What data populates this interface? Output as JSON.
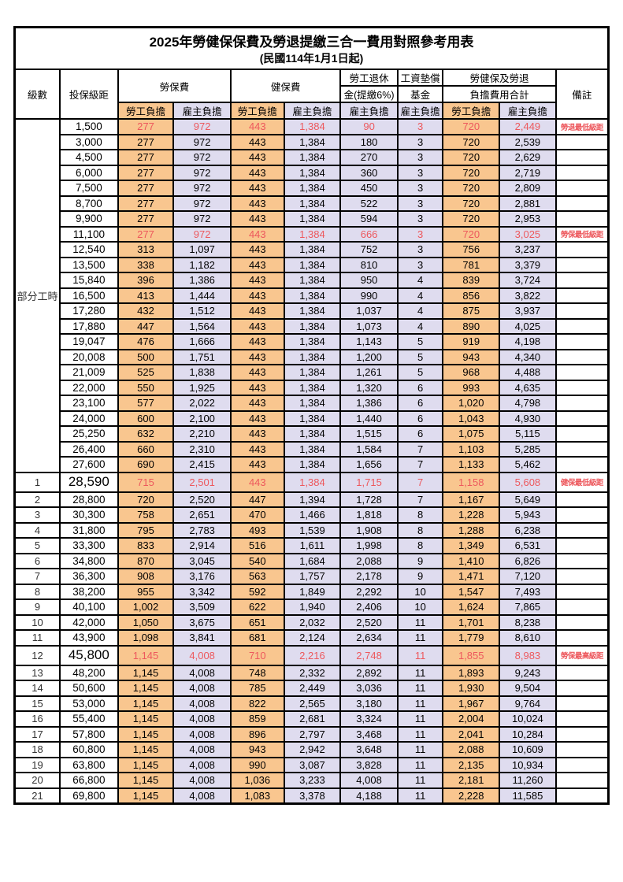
{
  "title": "2025年勞健保保費及勞退提繳三合一費用對照參考用表",
  "subtitle": "(民國114年1月1日起)",
  "header": {
    "level_label": "級數",
    "bracket_label": "投保級距",
    "labor_insurance_label": "勞保費",
    "health_insurance_label": "健保費",
    "pension_label_line1": "勞工退休",
    "pension_label_line2": "金(提繳6%)",
    "wage_fund_label_line1": "工資墊償",
    "wage_fund_label_line2": "基金",
    "grand_total_label_line1": "勞健保及勞退",
    "grand_total_label_line2": "負擔費用合計",
    "worker_label": "勞工負擔",
    "employer_label": "雇主負擔",
    "remark_label": "備註"
  },
  "part_time_label": "部分工時",
  "part_time_rowspan": 23,
  "colors": {
    "worker_bg": "#F9C68F",
    "employer_bg": "#DFDCEF",
    "highlight_red": "#ED585D"
  },
  "rows": [
    {
      "level": "",
      "bracket": "1,500",
      "cells": [
        "277",
        "972",
        "443",
        "1,384",
        "90",
        "3",
        "720",
        "2,449"
      ],
      "remark": "勞退最低級距",
      "red": true,
      "big": false
    },
    {
      "level": "",
      "bracket": "3,000",
      "cells": [
        "277",
        "972",
        "443",
        "1,384",
        "180",
        "3",
        "720",
        "2,539"
      ],
      "remark": "",
      "red": false,
      "big": false
    },
    {
      "level": "",
      "bracket": "4,500",
      "cells": [
        "277",
        "972",
        "443",
        "1,384",
        "270",
        "3",
        "720",
        "2,629"
      ],
      "remark": "",
      "red": false,
      "big": false
    },
    {
      "level": "",
      "bracket": "6,000",
      "cells": [
        "277",
        "972",
        "443",
        "1,384",
        "360",
        "3",
        "720",
        "2,719"
      ],
      "remark": "",
      "red": false,
      "big": false
    },
    {
      "level": "",
      "bracket": "7,500",
      "cells": [
        "277",
        "972",
        "443",
        "1,384",
        "450",
        "3",
        "720",
        "2,809"
      ],
      "remark": "",
      "red": false,
      "big": false
    },
    {
      "level": "",
      "bracket": "8,700",
      "cells": [
        "277",
        "972",
        "443",
        "1,384",
        "522",
        "3",
        "720",
        "2,881"
      ],
      "remark": "",
      "red": false,
      "big": false
    },
    {
      "level": "",
      "bracket": "9,900",
      "cells": [
        "277",
        "972",
        "443",
        "1,384",
        "594",
        "3",
        "720",
        "2,953"
      ],
      "remark": "",
      "red": false,
      "big": false
    },
    {
      "level": "",
      "bracket": "11,100",
      "cells": [
        "277",
        "972",
        "443",
        "1,384",
        "666",
        "3",
        "720",
        "3,025"
      ],
      "remark": "勞保最低級距",
      "red": true,
      "big": false
    },
    {
      "level": "",
      "bracket": "12,540",
      "cells": [
        "313",
        "1,097",
        "443",
        "1,384",
        "752",
        "3",
        "756",
        "3,237"
      ],
      "remark": "",
      "red": false,
      "big": false
    },
    {
      "level": "",
      "bracket": "13,500",
      "cells": [
        "338",
        "1,182",
        "443",
        "1,384",
        "810",
        "3",
        "781",
        "3,379"
      ],
      "remark": "",
      "red": false,
      "big": false
    },
    {
      "level": "",
      "bracket": "15,840",
      "cells": [
        "396",
        "1,386",
        "443",
        "1,384",
        "950",
        "4",
        "839",
        "3,724"
      ],
      "remark": "",
      "red": false,
      "big": false
    },
    {
      "level": "",
      "bracket": "16,500",
      "cells": [
        "413",
        "1,444",
        "443",
        "1,384",
        "990",
        "4",
        "856",
        "3,822"
      ],
      "remark": "",
      "red": false,
      "big": false
    },
    {
      "level": "",
      "bracket": "17,280",
      "cells": [
        "432",
        "1,512",
        "443",
        "1,384",
        "1,037",
        "4",
        "875",
        "3,937"
      ],
      "remark": "",
      "red": false,
      "big": false
    },
    {
      "level": "",
      "bracket": "17,880",
      "cells": [
        "447",
        "1,564",
        "443",
        "1,384",
        "1,073",
        "4",
        "890",
        "4,025"
      ],
      "remark": "",
      "red": false,
      "big": false
    },
    {
      "level": "",
      "bracket": "19,047",
      "cells": [
        "476",
        "1,666",
        "443",
        "1,384",
        "1,143",
        "5",
        "919",
        "4,198"
      ],
      "remark": "",
      "red": false,
      "big": false
    },
    {
      "level": "",
      "bracket": "20,008",
      "cells": [
        "500",
        "1,751",
        "443",
        "1,384",
        "1,200",
        "5",
        "943",
        "4,340"
      ],
      "remark": "",
      "red": false,
      "big": false
    },
    {
      "level": "",
      "bracket": "21,009",
      "cells": [
        "525",
        "1,838",
        "443",
        "1,384",
        "1,261",
        "5",
        "968",
        "4,488"
      ],
      "remark": "",
      "red": false,
      "big": false
    },
    {
      "level": "",
      "bracket": "22,000",
      "cells": [
        "550",
        "1,925",
        "443",
        "1,384",
        "1,320",
        "6",
        "993",
        "4,635"
      ],
      "remark": "",
      "red": false,
      "big": false
    },
    {
      "level": "",
      "bracket": "23,100",
      "cells": [
        "577",
        "2,022",
        "443",
        "1,384",
        "1,386",
        "6",
        "1,020",
        "4,798"
      ],
      "remark": "",
      "red": false,
      "big": false
    },
    {
      "level": "",
      "bracket": "24,000",
      "cells": [
        "600",
        "2,100",
        "443",
        "1,384",
        "1,440",
        "6",
        "1,043",
        "4,930"
      ],
      "remark": "",
      "red": false,
      "big": false
    },
    {
      "level": "",
      "bracket": "25,250",
      "cells": [
        "632",
        "2,210",
        "443",
        "1,384",
        "1,515",
        "6",
        "1,075",
        "5,115"
      ],
      "remark": "",
      "red": false,
      "big": false
    },
    {
      "level": "",
      "bracket": "26,400",
      "cells": [
        "660",
        "2,310",
        "443",
        "1,384",
        "1,584",
        "7",
        "1,103",
        "5,285"
      ],
      "remark": "",
      "red": false,
      "big": false
    },
    {
      "level": "",
      "bracket": "27,600",
      "cells": [
        "690",
        "2,415",
        "443",
        "1,384",
        "1,656",
        "7",
        "1,133",
        "5,462"
      ],
      "remark": "",
      "red": false,
      "big": false
    },
    {
      "level": "1",
      "bracket": "28,590",
      "cells": [
        "715",
        "2,501",
        "443",
        "1,384",
        "1,715",
        "7",
        "1,158",
        "5,608"
      ],
      "remark": "健保最低級距",
      "red": true,
      "big": true
    },
    {
      "level": "2",
      "bracket": "28,800",
      "cells": [
        "720",
        "2,520",
        "447",
        "1,394",
        "1,728",
        "7",
        "1,167",
        "5,649"
      ],
      "remark": "",
      "red": false,
      "big": false
    },
    {
      "level": "3",
      "bracket": "30,300",
      "cells": [
        "758",
        "2,651",
        "470",
        "1,466",
        "1,818",
        "8",
        "1,228",
        "5,943"
      ],
      "remark": "",
      "red": false,
      "big": false
    },
    {
      "level": "4",
      "bracket": "31,800",
      "cells": [
        "795",
        "2,783",
        "493",
        "1,539",
        "1,908",
        "8",
        "1,288",
        "6,238"
      ],
      "remark": "",
      "red": false,
      "big": false
    },
    {
      "level": "5",
      "bracket": "33,300",
      "cells": [
        "833",
        "2,914",
        "516",
        "1,611",
        "1,998",
        "8",
        "1,349",
        "6,531"
      ],
      "remark": "",
      "red": false,
      "big": false
    },
    {
      "level": "6",
      "bracket": "34,800",
      "cells": [
        "870",
        "3,045",
        "540",
        "1,684",
        "2,088",
        "9",
        "1,410",
        "6,826"
      ],
      "remark": "",
      "red": false,
      "big": false
    },
    {
      "level": "7",
      "bracket": "36,300",
      "cells": [
        "908",
        "3,176",
        "563",
        "1,757",
        "2,178",
        "9",
        "1,471",
        "7,120"
      ],
      "remark": "",
      "red": false,
      "big": false
    },
    {
      "level": "8",
      "bracket": "38,200",
      "cells": [
        "955",
        "3,342",
        "592",
        "1,849",
        "2,292",
        "10",
        "1,547",
        "7,493"
      ],
      "remark": "",
      "red": false,
      "big": false
    },
    {
      "level": "9",
      "bracket": "40,100",
      "cells": [
        "1,002",
        "3,509",
        "622",
        "1,940",
        "2,406",
        "10",
        "1,624",
        "7,865"
      ],
      "remark": "",
      "red": false,
      "big": false
    },
    {
      "level": "10",
      "bracket": "42,000",
      "cells": [
        "1,050",
        "3,675",
        "651",
        "2,032",
        "2,520",
        "11",
        "1,701",
        "8,238"
      ],
      "remark": "",
      "red": false,
      "big": false
    },
    {
      "level": "11",
      "bracket": "43,900",
      "cells": [
        "1,098",
        "3,841",
        "681",
        "2,124",
        "2,634",
        "11",
        "1,779",
        "8,610"
      ],
      "remark": "",
      "red": false,
      "big": false
    },
    {
      "level": "12",
      "bracket": "45,800",
      "cells": [
        "1,145",
        "4,008",
        "710",
        "2,216",
        "2,748",
        "11",
        "1,855",
        "8,983"
      ],
      "remark": "勞保最高級距",
      "red": true,
      "big": true
    },
    {
      "level": "13",
      "bracket": "48,200",
      "cells": [
        "1,145",
        "4,008",
        "748",
        "2,332",
        "2,892",
        "11",
        "1,893",
        "9,243"
      ],
      "remark": "",
      "red": false,
      "big": false
    },
    {
      "level": "14",
      "bracket": "50,600",
      "cells": [
        "1,145",
        "4,008",
        "785",
        "2,449",
        "3,036",
        "11",
        "1,930",
        "9,504"
      ],
      "remark": "",
      "red": false,
      "big": false
    },
    {
      "level": "15",
      "bracket": "53,000",
      "cells": [
        "1,145",
        "4,008",
        "822",
        "2,565",
        "3,180",
        "11",
        "1,967",
        "9,764"
      ],
      "remark": "",
      "red": false,
      "big": false
    },
    {
      "level": "16",
      "bracket": "55,400",
      "cells": [
        "1,145",
        "4,008",
        "859",
        "2,681",
        "3,324",
        "11",
        "2,004",
        "10,024"
      ],
      "remark": "",
      "red": false,
      "big": false
    },
    {
      "level": "17",
      "bracket": "57,800",
      "cells": [
        "1,145",
        "4,008",
        "896",
        "2,797",
        "3,468",
        "11",
        "2,041",
        "10,284"
      ],
      "remark": "",
      "red": false,
      "big": false
    },
    {
      "level": "18",
      "bracket": "60,800",
      "cells": [
        "1,145",
        "4,008",
        "943",
        "2,942",
        "3,648",
        "11",
        "2,088",
        "10,609"
      ],
      "remark": "",
      "red": false,
      "big": false
    },
    {
      "level": "19",
      "bracket": "63,800",
      "cells": [
        "1,145",
        "4,008",
        "990",
        "3,087",
        "3,828",
        "11",
        "2,135",
        "10,934"
      ],
      "remark": "",
      "red": false,
      "big": false
    },
    {
      "level": "20",
      "bracket": "66,800",
      "cells": [
        "1,145",
        "4,008",
        "1,036",
        "3,233",
        "4,008",
        "11",
        "2,181",
        "11,260"
      ],
      "remark": "",
      "red": false,
      "big": false
    },
    {
      "level": "21",
      "bracket": "69,800",
      "cells": [
        "1,145",
        "4,008",
        "1,083",
        "3,378",
        "4,188",
        "11",
        "2,228",
        "11,585"
      ],
      "remark": "",
      "red": false,
      "big": false
    }
  ]
}
